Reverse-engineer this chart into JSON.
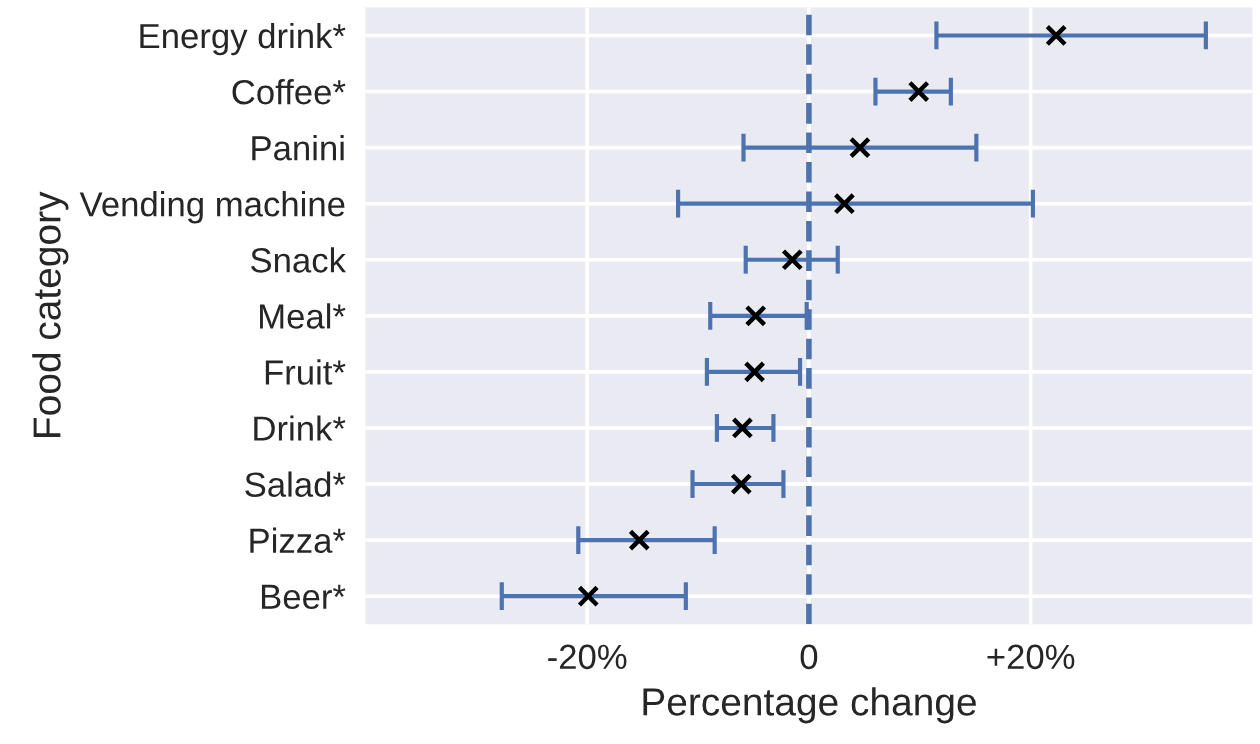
{
  "chart_data": {
    "type": "scatter",
    "orientation": "horizontal",
    "xlabel": "Percentage change",
    "ylabel": "Food category",
    "categories": [
      "Energy drink*",
      "Coffee*",
      "Panini",
      "Vending machine",
      "Snack",
      "Meal*",
      "Fruit*",
      "Drink*",
      "Salad*",
      "Pizza*",
      "Beer*"
    ],
    "series": [
      {
        "color": "#000000",
        "values": [
          22.3,
          9.9,
          4.6,
          3.2,
          -1.5,
          -4.8,
          -4.9,
          -6.0,
          -6.1,
          -15.3,
          -19.9
        ],
        "errors": [
          [
            11.5,
            35.8
          ],
          [
            6.0,
            12.8
          ],
          [
            -5.9,
            15.1
          ],
          [
            -11.8,
            20.2
          ],
          [
            -5.7,
            2.6
          ],
          [
            -8.9,
            -0.2
          ],
          [
            -9.2,
            -0.8
          ],
          [
            -8.3,
            -3.2
          ],
          [
            -10.5,
            -2.3
          ],
          [
            -20.8,
            -8.5
          ],
          [
            -27.7,
            -11.1
          ]
        ]
      }
    ],
    "marker": "cross",
    "xlim": [
      -40,
      40
    ],
    "xticks": [
      {
        "value": -20,
        "label": "-20%"
      },
      0,
      {
        "value": 20,
        "label": "+20%"
      }
    ],
    "ref_lines": [
      {
        "axis": "x",
        "value": 0,
        "color": "#4c72b0",
        "line_style": "dashed"
      }
    ],
    "grid": true
  }
}
